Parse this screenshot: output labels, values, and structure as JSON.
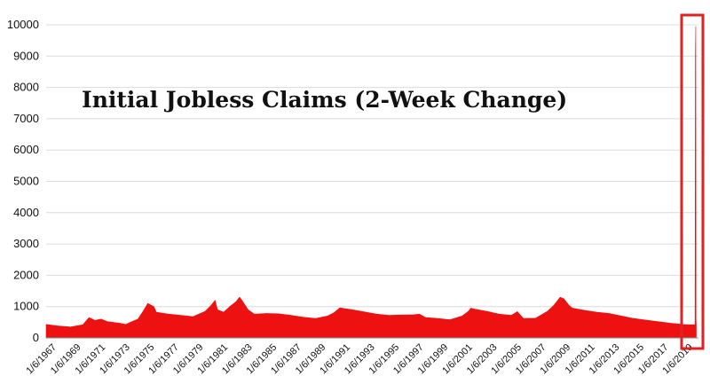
{
  "chart_data": {
    "type": "area",
    "title": "Initial Jobless Claims (2-Week Change)",
    "xlabel": "",
    "ylabel": "",
    "ylim": [
      0,
      10000
    ],
    "y_ticks": [
      0,
      1000,
      2000,
      3000,
      4000,
      5000,
      6000,
      7000,
      8000,
      9000,
      10000
    ],
    "x_tick_labels": [
      "1/6/1967",
      "1/6/1969",
      "1/6/1971",
      "1/6/1973",
      "1/6/1975",
      "1/6/1977",
      "1/6/1979",
      "1/6/1981",
      "1/6/1983",
      "1/6/1985",
      "1/6/1987",
      "1/6/1989",
      "1/6/1991",
      "1/6/1993",
      "1/6/1995",
      "1/6/1997",
      "1/6/1999",
      "1/6/2001",
      "1/6/2003",
      "1/6/2005",
      "1/6/2007",
      "1/6/2009",
      "1/6/2011",
      "1/6/2013",
      "1/6/2015",
      "1/6/2017",
      "1/6/2019"
    ],
    "grid": true,
    "series_color": "#ee1111",
    "highlight_color": "#dd2222",
    "x": [
      1967.0,
      1968.0,
      1969.0,
      1970.0,
      1970.5,
      1971.0,
      1971.5,
      1972.0,
      1973.0,
      1973.5,
      1974.0,
      1974.5,
      1975.0,
      1975.3,
      1975.8,
      1976.0,
      1977.0,
      1978.0,
      1979.0,
      1980.0,
      1980.5,
      1980.8,
      1981.0,
      1981.5,
      1982.0,
      1982.5,
      1982.8,
      1983.0,
      1983.5,
      1984.0,
      1985.0,
      1986.0,
      1987.0,
      1988.0,
      1989.0,
      1990.0,
      1990.5,
      1991.0,
      1991.3,
      1992.0,
      1993.0,
      1994.0,
      1995.0,
      1996.0,
      1997.0,
      1997.5,
      1998.0,
      1999.0,
      2000.0,
      2001.0,
      2001.5,
      2001.7,
      2002.0,
      2003.0,
      2004.0,
      2005.0,
      2005.5,
      2006.0,
      2007.0,
      2008.0,
      2008.5,
      2009.0,
      2009.3,
      2009.7,
      2010.0,
      2011.0,
      2012.0,
      2013.0,
      2014.0,
      2015.0,
      2016.0,
      2017.0,
      2018.0,
      2019.0,
      2019.5,
      2020.0,
      2020.02,
      2020.05,
      2020.08,
      2020.1,
      2020.12
    ],
    "values": [
      430,
      380,
      350,
      420,
      650,
      560,
      600,
      520,
      470,
      430,
      520,
      600,
      900,
      1100,
      1000,
      820,
      760,
      720,
      680,
      850,
      1050,
      1200,
      900,
      820,
      1000,
      1150,
      1300,
      1200,
      900,
      760,
      780,
      770,
      720,
      660,
      620,
      700,
      800,
      960,
      940,
      900,
      830,
      760,
      720,
      730,
      740,
      760,
      650,
      620,
      580,
      700,
      850,
      950,
      920,
      850,
      760,
      720,
      840,
      620,
      630,
      860,
      1050,
      1300,
      1250,
      1050,
      950,
      880,
      820,
      780,
      700,
      620,
      570,
      520,
      470,
      430,
      420,
      420,
      440,
      9000,
      9950,
      600,
      430
    ]
  }
}
